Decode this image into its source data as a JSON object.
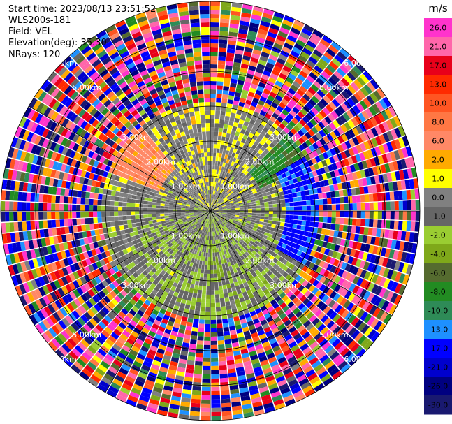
{
  "header": {
    "start_time": "Start time: 2023/08/13 23:51:52",
    "instrument": "WLS200s-181",
    "field": "Field: VEL",
    "elevation": "Elevation(deg): 35.30",
    "nrays": "NRays: 120"
  },
  "chart_data": {
    "type": "heatmap",
    "projection": "polar-ppi",
    "n_rays": 120,
    "max_range_km": 6.0,
    "range_rings_km": [
      1.0,
      2.0,
      3.0,
      4.0,
      5.0,
      6.0
    ],
    "ring_label_text": {
      "1": "1.00km",
      "2": "2.00km",
      "3": "3.00km",
      "5": "5.00km",
      "6": "6.00km"
    },
    "colorbar": {
      "unit": "m/s",
      "tick_labels": [
        "26.0",
        "21.0",
        "17.0",
        "13.0",
        "10.0",
        "8.0",
        "6.0",
        "2.0",
        "1.0",
        "0.0",
        "-1.0",
        "-2.0",
        "-4.0",
        "-6.0",
        "-8.0",
        "-10.0",
        "-13.0",
        "-17.0",
        "-21.0",
        "-26.0",
        "-30.0"
      ],
      "bins": [
        {
          "min": 26,
          "max": 30,
          "color": "#ff33cc"
        },
        {
          "min": 21,
          "max": 26,
          "color": "#ff66aa"
        },
        {
          "min": 17,
          "max": 21,
          "color": "#e8001a"
        },
        {
          "min": 13,
          "max": 17,
          "color": "#ff2a00"
        },
        {
          "min": 10,
          "max": 13,
          "color": "#ff5522"
        },
        {
          "min": 8,
          "max": 10,
          "color": "#ff7744"
        },
        {
          "min": 6,
          "max": 8,
          "color": "#ff8866"
        },
        {
          "min": 2,
          "max": 6,
          "color": "#ffaa00"
        },
        {
          "min": 1,
          "max": 2,
          "color": "#ffff00"
        },
        {
          "min": 0,
          "max": 1,
          "color": "#808080"
        },
        {
          "min": -1,
          "max": 0,
          "color": "#666666"
        },
        {
          "min": -2,
          "max": -1,
          "color": "#9acd32"
        },
        {
          "min": -4,
          "max": -2,
          "color": "#7fa81a"
        },
        {
          "min": -6,
          "max": -4,
          "color": "#556b2f"
        },
        {
          "min": -8,
          "max": -6,
          "color": "#228b22"
        },
        {
          "min": -10,
          "max": -8,
          "color": "#2e8b57"
        },
        {
          "min": -13,
          "max": -10,
          "color": "#1e90ff"
        },
        {
          "min": -17,
          "max": -13,
          "color": "#0000ff"
        },
        {
          "min": -21,
          "max": -17,
          "color": "#0000cd"
        },
        {
          "min": -26,
          "max": -21,
          "color": "#000080"
        },
        {
          "min": -30,
          "max": -26,
          "color": "#191970"
        }
      ]
    }
  }
}
